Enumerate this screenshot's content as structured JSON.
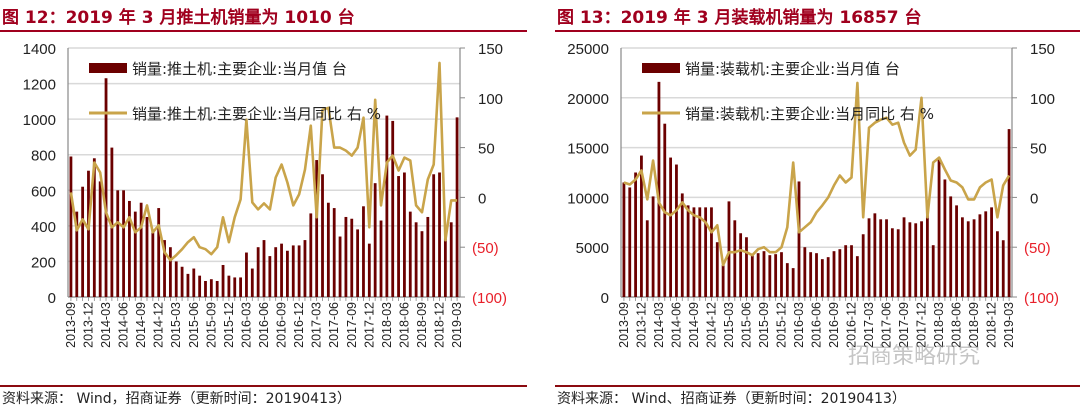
{
  "charts_header": [
    {
      "title": "图 12：2019 年 3 月推土机销量为 1010 台",
      "source": "资料来源：  Wind，招商证券（更新时间：20190413）"
    },
    {
      "title": "图 13：2019 年 3 月装载机销量为 16857 台",
      "source": "资料来源：  Wind、招商证券（更新时间：20190413）"
    }
  ],
  "watermark": "招商策略研究",
  "colors": {
    "bar": "#6b0000",
    "line": "#c9a44a",
    "title": "#a0001e",
    "negative_label": "#e8202a"
  },
  "chart_data": [
    {
      "type": "bar+line",
      "title": "图 12：2019 年 3 月推土机销量为 1010 台",
      "x_start": "2013-09",
      "x_end": "2019-03",
      "x_tick_labels": [
        "2013-09",
        "2013-12",
        "2014-03",
        "2014-06",
        "2014-09",
        "2014-12",
        "2015-03",
        "2015-06",
        "2015-09",
        "2015-12",
        "2016-03",
        "2016-06",
        "2016-09",
        "2016-12",
        "2017-03",
        "2017-06",
        "2017-09",
        "2017-12",
        "2018-03",
        "2018-06",
        "2018-09",
        "2018-12",
        "2019-03"
      ],
      "left_axis": {
        "ylim": [
          0,
          1400
        ],
        "ticks": [
          "0",
          "200",
          "400",
          "600",
          "800",
          "1000",
          "1200",
          "1400"
        ]
      },
      "right_axis": {
        "ylim": [
          -100,
          150
        ],
        "ticks": [
          "(100)",
          "(50)",
          "0",
          "50",
          "100",
          "150"
        ]
      },
      "legend": [
        "销量:推土机:主要企业:当月值 台",
        "销量:推土机:主要企业:当月同比 右 %"
      ],
      "legend_placement": "top-left",
      "grid": true,
      "series": [
        {
          "name": "销量:推土机:主要企业:当月值 台",
          "type": "bar",
          "axis": "left",
          "values": [
            790,
            480,
            620,
            710,
            780,
            650,
            1230,
            840,
            600,
            600,
            540,
            480,
            530,
            450,
            380,
            500,
            320,
            280,
            200,
            170,
            130,
            160,
            120,
            90,
            100,
            90,
            180,
            120,
            110,
            110,
            250,
            160,
            280,
            320,
            230,
            280,
            300,
            260,
            290,
            290,
            320,
            470,
            770,
            690,
            530,
            500,
            340,
            450,
            440,
            380,
            510,
            300,
            640,
            430,
            1020,
            990,
            680,
            700,
            480,
            420,
            370,
            450,
            690,
            700,
            330,
            420,
            1010
          ]
        },
        {
          "name": "销量:推土机:主要企业:当月同比 右 %",
          "type": "line",
          "axis": "right",
          "values": [
            5,
            -33,
            -22,
            -32,
            35,
            25,
            -15,
            -30,
            -25,
            -30,
            -20,
            -35,
            -30,
            -8,
            -35,
            -28,
            -55,
            -63,
            -58,
            -52,
            -45,
            -40,
            -50,
            -52,
            -57,
            -50,
            -20,
            -45,
            -20,
            -2,
            78,
            -5,
            -12,
            -6,
            -12,
            20,
            33,
            15,
            -8,
            3,
            28,
            72,
            -20,
            88,
            90,
            50,
            50,
            47,
            42,
            50,
            80,
            -30,
            98,
            -8,
            35,
            42,
            27,
            40,
            37,
            -8,
            -15,
            18,
            33,
            135,
            -43,
            -3,
            -3
          ]
        }
      ]
    },
    {
      "type": "bar+line",
      "title": "图 13：2019 年 3 月装载机销量为 16857 台",
      "x_start": "2013-09",
      "x_end": "2019-03",
      "x_tick_labels": [
        "2013-09",
        "2013-12",
        "2014-03",
        "2014-06",
        "2014-09",
        "2014-12",
        "2015-03",
        "2015-06",
        "2015-09",
        "2015-12",
        "2016-03",
        "2016-06",
        "2016-09",
        "2016-12",
        "2017-03",
        "2017-06",
        "2017-09",
        "2017-12",
        "2018-03",
        "2018-06",
        "2018-09",
        "2018-12",
        "2019-03"
      ],
      "left_axis": {
        "ylim": [
          0,
          25000
        ],
        "ticks": [
          "0",
          "5000",
          "10000",
          "15000",
          "20000",
          "25000"
        ]
      },
      "right_axis": {
        "ylim": [
          -100,
          150
        ],
        "ticks": [
          "(100)",
          "(50)",
          "0",
          "50",
          "100",
          "150"
        ]
      },
      "legend": [
        "销量:装载机:主要企业:当月值 台",
        "销量:装载机:主要企业:当月同比 右 %"
      ],
      "legend_placement": "top-left",
      "grid": true,
      "series": [
        {
          "name": "销量:装载机:主要企业:当月值 台",
          "type": "bar",
          "axis": "left",
          "values": [
            11500,
            11000,
            12500,
            14200,
            7700,
            10100,
            21600,
            17400,
            14000,
            13300,
            10400,
            9200,
            9000,
            9000,
            9000,
            9000,
            5500,
            3200,
            9600,
            7700,
            6400,
            6000,
            4300,
            4400,
            4600,
            4200,
            4300,
            4500,
            3400,
            2900,
            11600,
            5000,
            4500,
            4400,
            3800,
            4000,
            4600,
            4800,
            5200,
            5200,
            4100,
            6300,
            7900,
            8400,
            7800,
            7800,
            6900,
            6800,
            8000,
            7500,
            7400,
            7600,
            8200,
            5200,
            13900,
            11800,
            10100,
            9200,
            8000,
            7600,
            7800,
            8300,
            8600,
            9000,
            6600,
            5700,
            16857
          ]
        },
        {
          "name": "销量:装载机:主要企业:当月同比 右 %",
          "type": "line",
          "axis": "right",
          "values": [
            15,
            13,
            18,
            27,
            -2,
            37,
            -5,
            -15,
            -18,
            -13,
            -5,
            -13,
            -18,
            -20,
            -25,
            -35,
            -28,
            -68,
            -55,
            -55,
            -53,
            -55,
            -58,
            -52,
            -50,
            -55,
            -55,
            -50,
            -30,
            35,
            -35,
            -30,
            -25,
            -15,
            -8,
            0,
            12,
            22,
            15,
            20,
            115,
            -20,
            70,
            75,
            78,
            80,
            73,
            75,
            55,
            42,
            48,
            100,
            -20,
            35,
            40,
            28,
            17,
            15,
            10,
            -2,
            -2,
            10,
            15,
            18,
            -20,
            12,
            22
          ]
        }
      ]
    }
  ]
}
